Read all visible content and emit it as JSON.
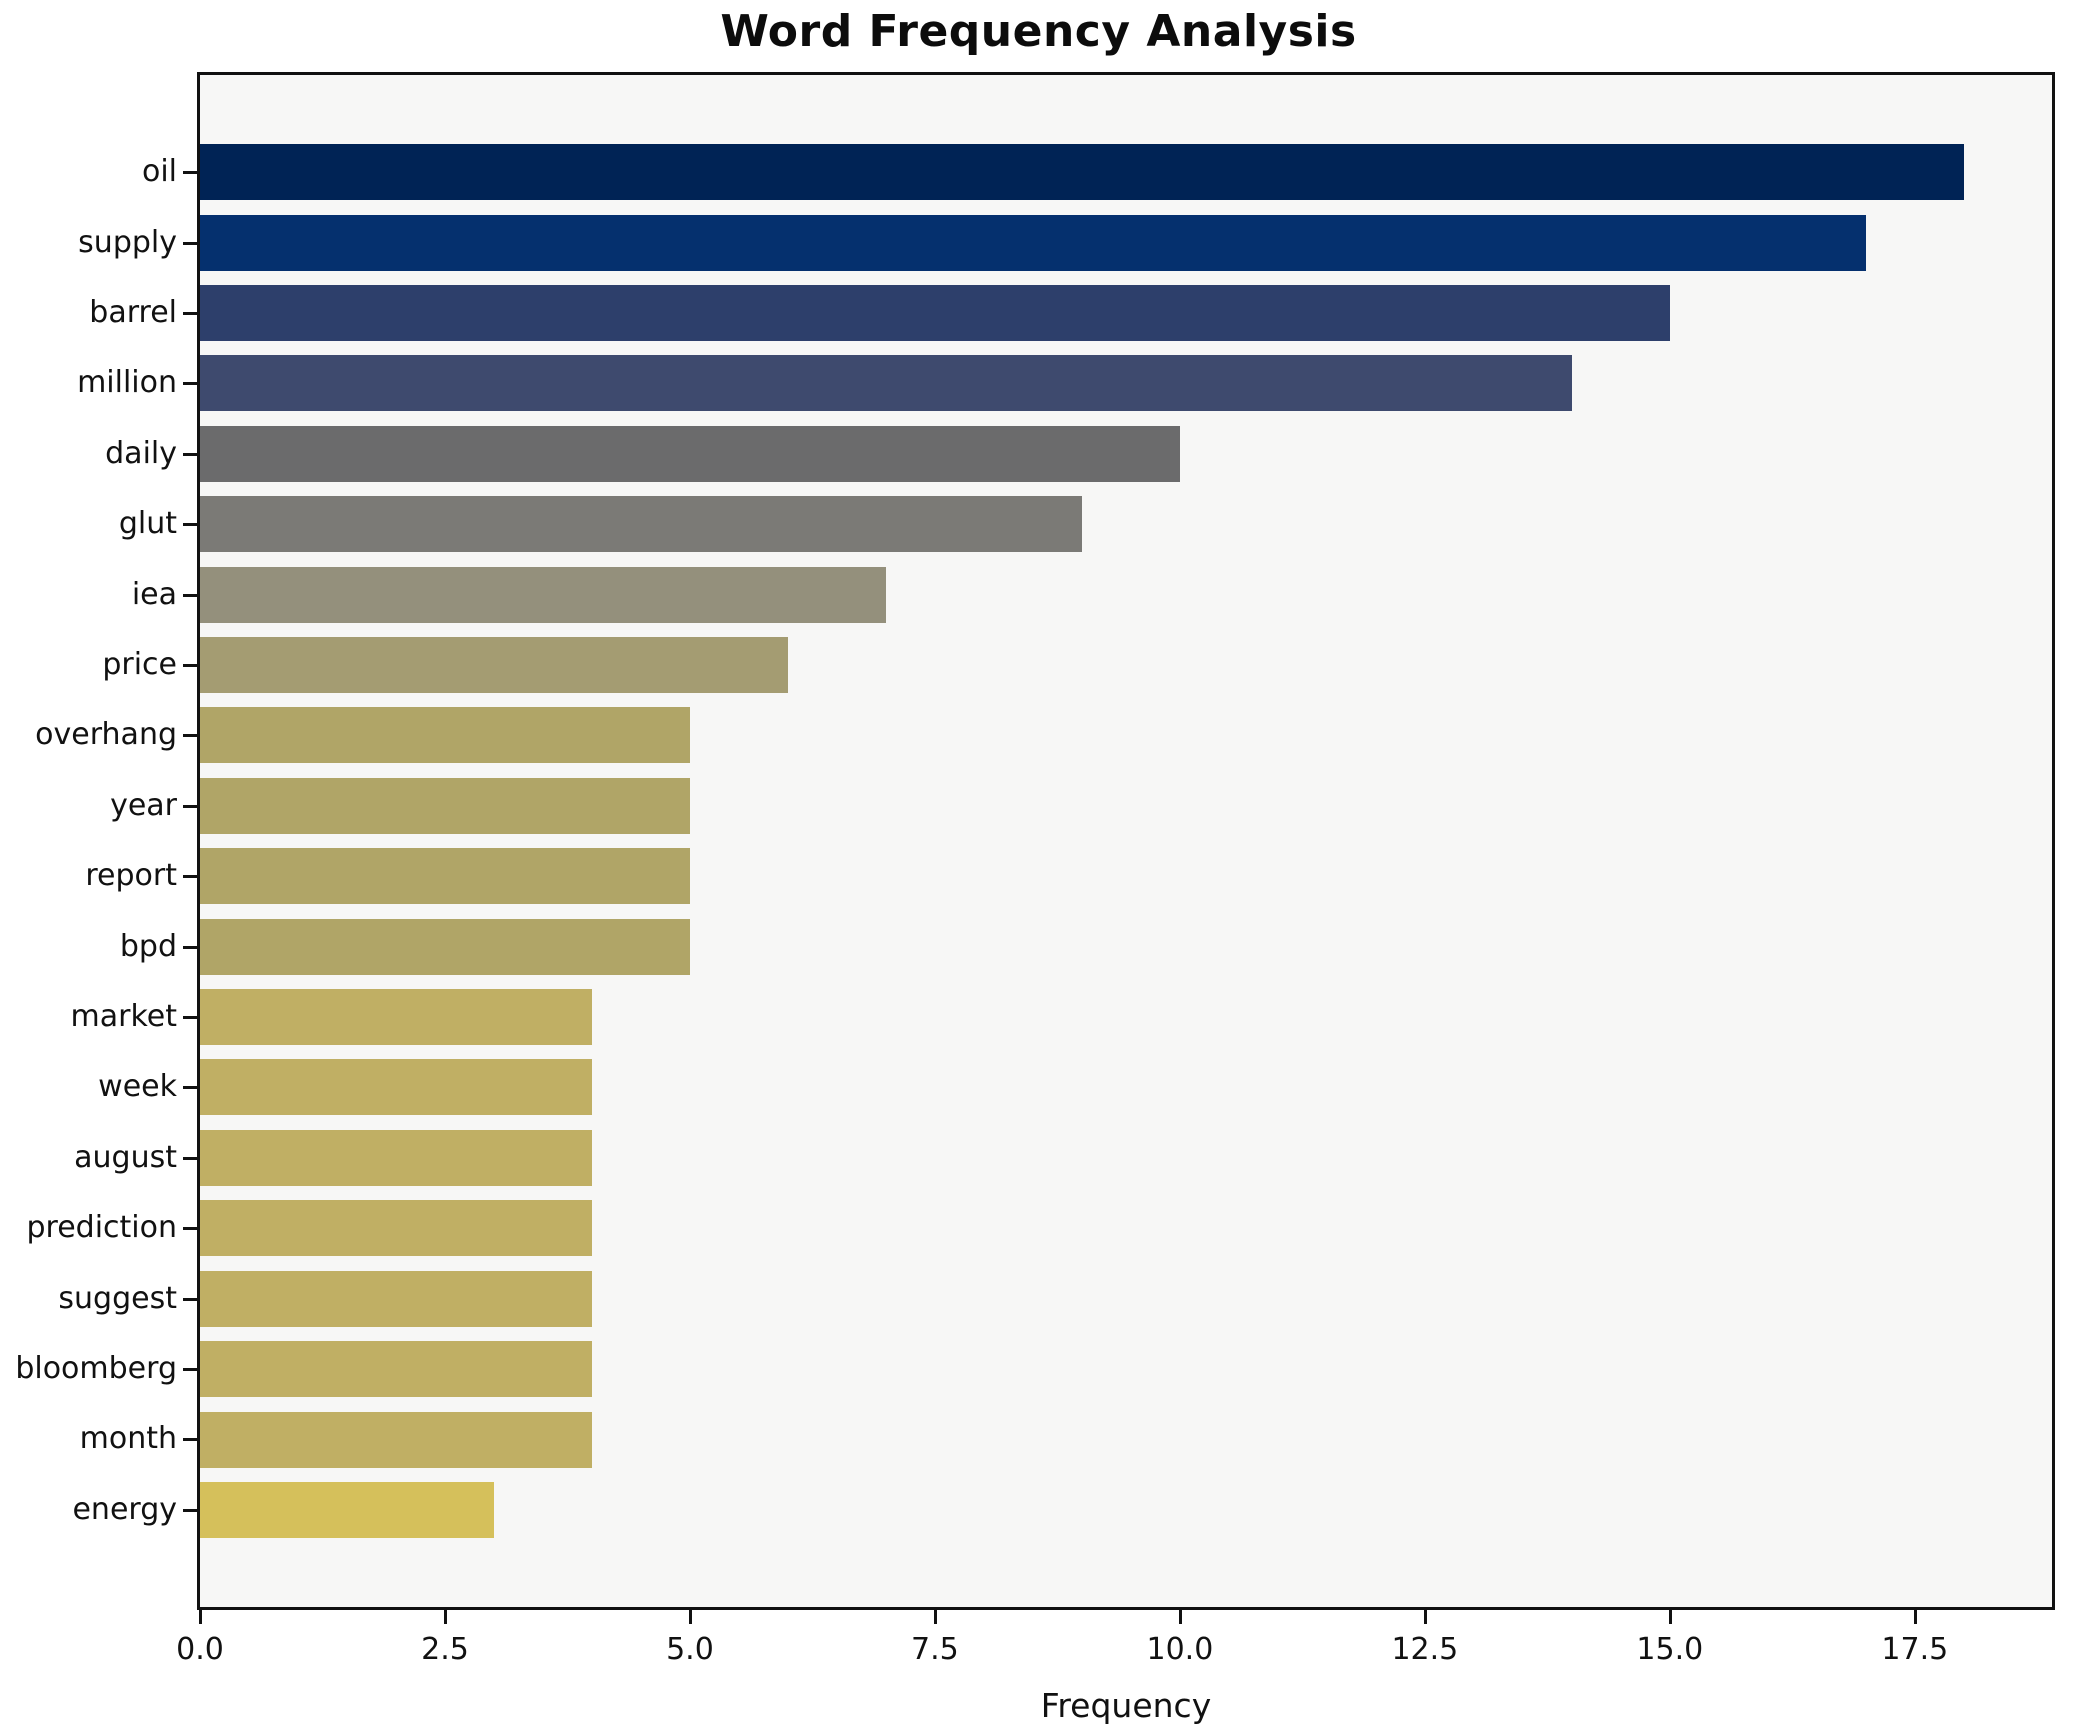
{
  "chart_data": {
    "type": "bar",
    "orientation": "horizontal",
    "title": "Word Frequency Analysis",
    "xlabel": "Frequency",
    "ylabel": "",
    "grid": false,
    "legend_position": "none",
    "xlim": [
      0,
      18.9
    ],
    "x_ticks": [
      0,
      2.5,
      5,
      7.5,
      10,
      12.5,
      15,
      17.5
    ],
    "x_tick_labels": [
      "0.0",
      "2.5",
      "5.0",
      "7.5",
      "10.0",
      "12.5",
      "15.0",
      "17.5"
    ],
    "categories": [
      "oil",
      "supply",
      "barrel",
      "million",
      "daily",
      "glut",
      "iea",
      "price",
      "overhang",
      "year",
      "report",
      "bpd",
      "market",
      "week",
      "august",
      "prediction",
      "suggest",
      "bloomberg",
      "month",
      "energy"
    ],
    "values": [
      18,
      17,
      15,
      14,
      10,
      9,
      7,
      6,
      5,
      5,
      5,
      5,
      4,
      4,
      4,
      4,
      4,
      4,
      4,
      3
    ],
    "bar_colors": [
      "#002355",
      "#05306e",
      "#2d3f6b",
      "#3e4a6e",
      "#6b6b6c",
      "#7b7a76",
      "#94907c",
      "#a49c72",
      "#b0a567",
      "#b0a567",
      "#b0a567",
      "#b0a567",
      "#c0af64",
      "#c0af64",
      "#c0af64",
      "#c0af64",
      "#c0af64",
      "#c0af64",
      "#c0af64",
      "#d5c05b"
    ],
    "colors": {
      "plot_background": "#f7f7f6",
      "figure_background": "#ffffff",
      "spine": "#111111",
      "text": "#111111"
    }
  }
}
